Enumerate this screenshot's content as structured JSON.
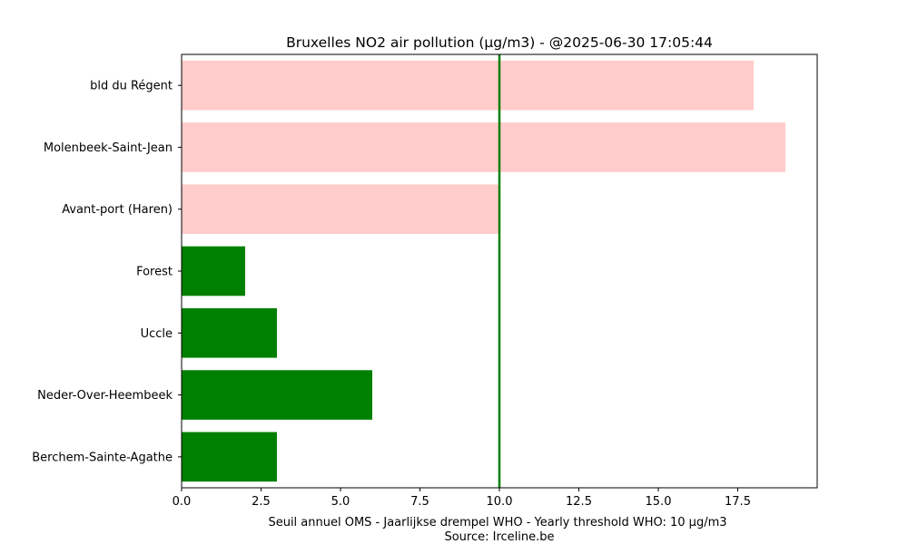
{
  "chart_data": {
    "type": "bar",
    "orientation": "horizontal",
    "title": "Bruxelles NO2 air pollution (µg/m3) - @2025-06-30 17:05:44",
    "xlabel": "Seuil annuel OMS - Jaarlijkse drempel WHO - Yearly threshold WHO: 10 µg/m3",
    "xlabel2": "Source: Irceline.be",
    "ylabel": "",
    "xlim": [
      0,
      20
    ],
    "x_ticks": [
      "0.0",
      "2.5",
      "5.0",
      "7.5",
      "10.0",
      "12.5",
      "15.0",
      "17.5"
    ],
    "categories": [
      "bld du Régent",
      "Molenbeek-Saint-Jean",
      "Avant-port (Haren)",
      "Forest",
      "Uccle",
      "Neder-Over-Heembeek",
      "Berchem-Sainte-Agathe"
    ],
    "values": [
      18,
      19,
      10,
      2,
      3,
      6,
      3
    ],
    "threshold": 10,
    "colors": {
      "above_threshold": "#ffcccc",
      "below_threshold": "#008000",
      "threshold_line": "#008000"
    },
    "grid": false,
    "legend": "none"
  }
}
